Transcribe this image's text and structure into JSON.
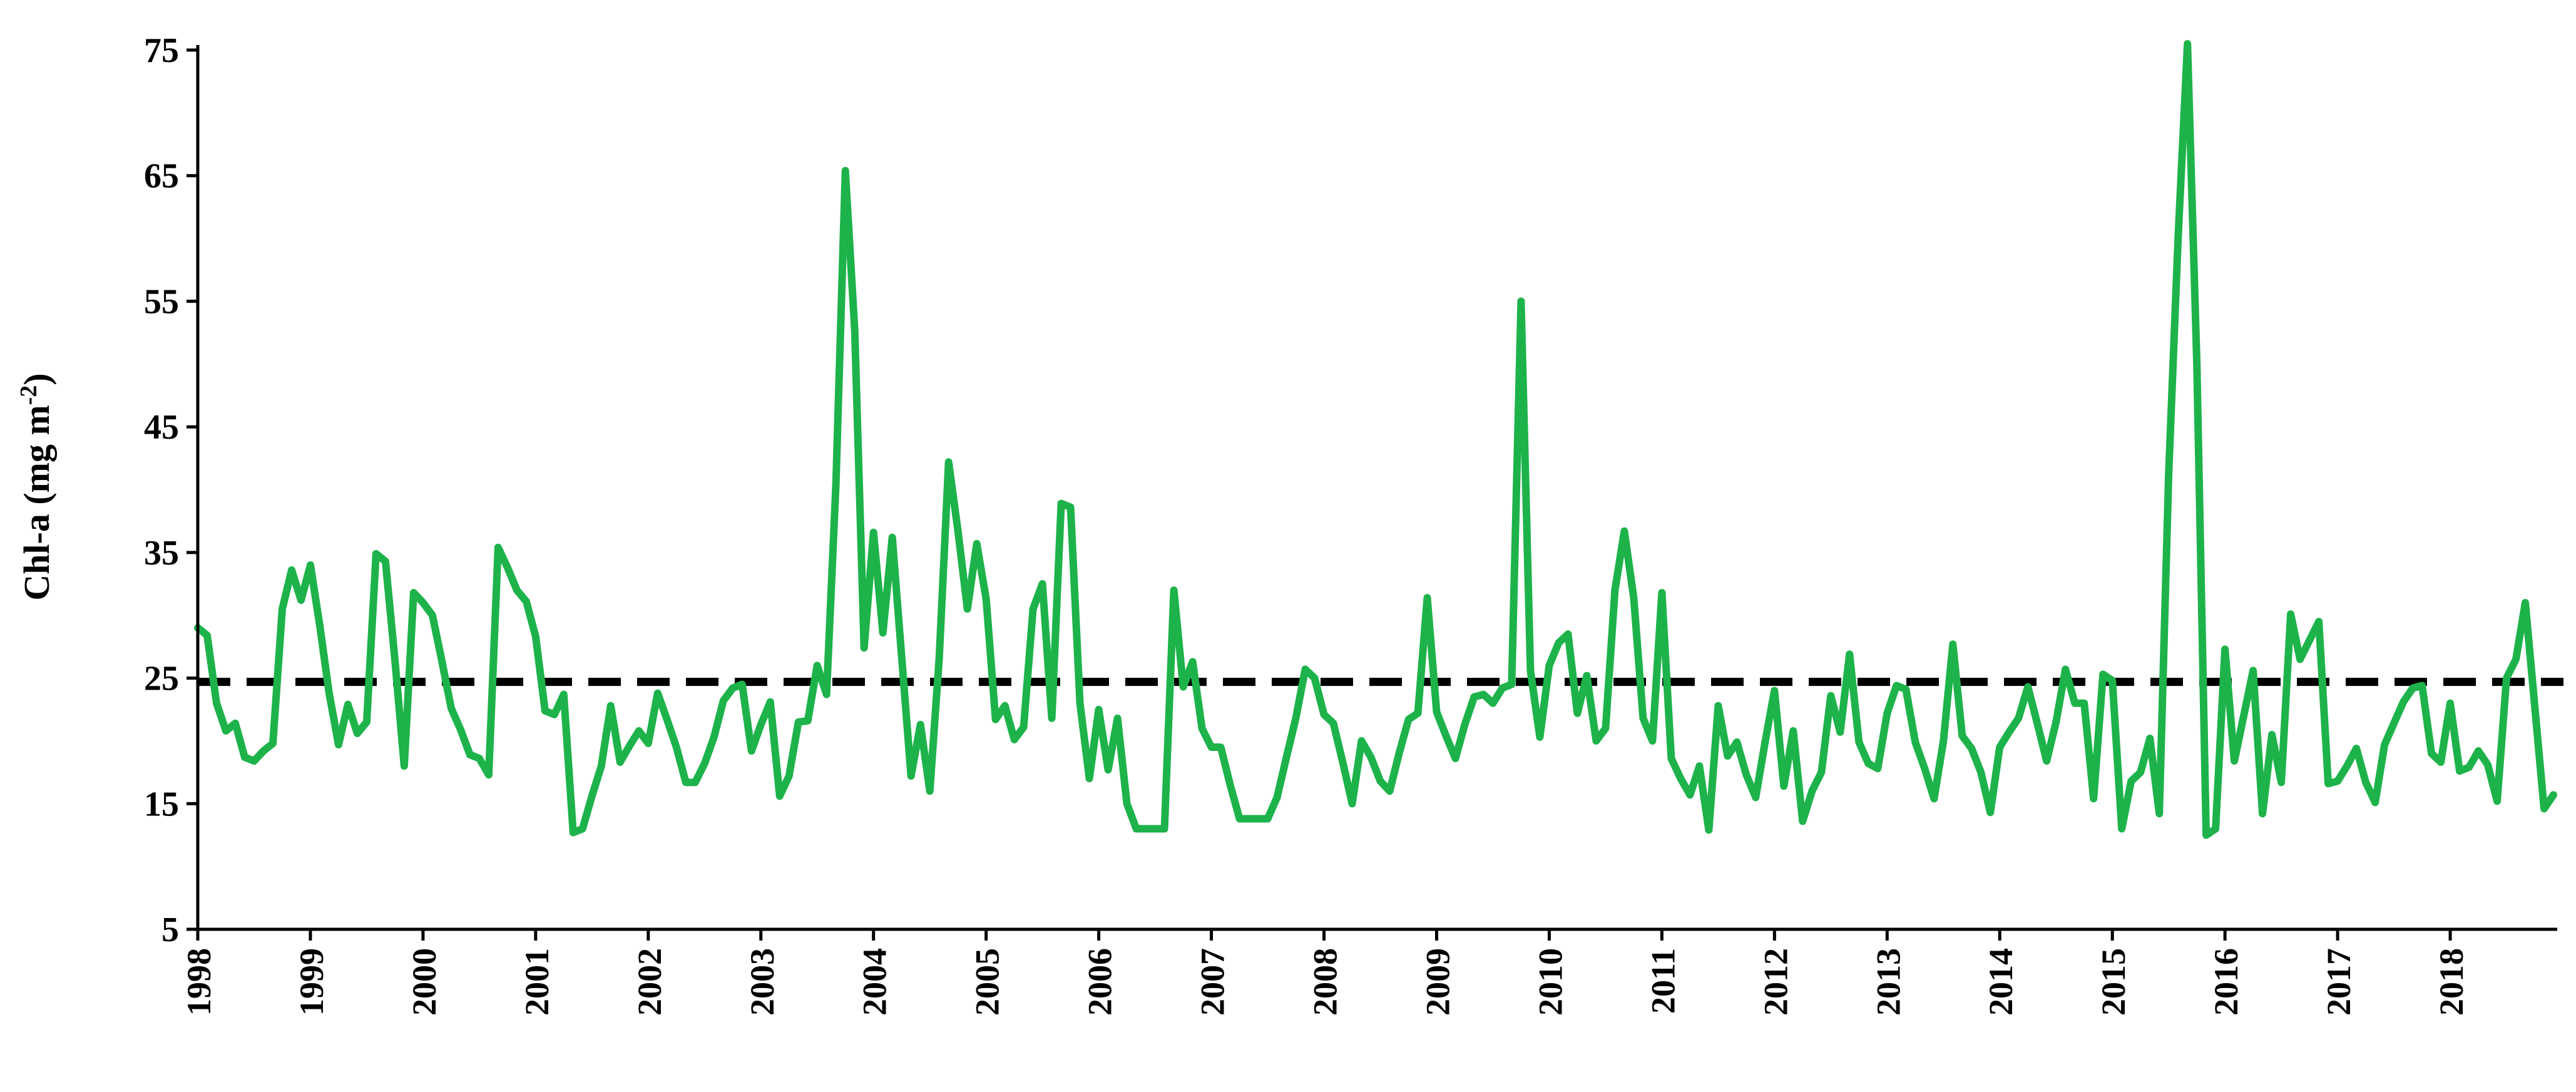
{
  "chart_data": {
    "type": "line",
    "title": "",
    "xlabel": "",
    "ylabel": "Chl-a (mg m",
    "ylabel_sup": "-2",
    "ylabel_close": ")",
    "ylim": [
      5,
      75
    ],
    "yticks": [
      5,
      15,
      25,
      35,
      45,
      55,
      65,
      75
    ],
    "xlim": [
      1998,
      2018.95
    ],
    "xticks": [
      "1998",
      "1999",
      "2000",
      "2001",
      "2002",
      "2003",
      "2004",
      "2005",
      "2006",
      "2007",
      "2008",
      "2009",
      "2010",
      "2011",
      "2012",
      "2013",
      "2014",
      "2015",
      "2016",
      "2017",
      "2018"
    ],
    "grid": false,
    "legend": "none",
    "colors": {
      "series": "#1db34a",
      "reference": "#000000",
      "axis": "#000000"
    },
    "series": [
      {
        "type": "line",
        "x_start": "1998-01",
        "x_step": "monthly",
        "values": [
          29.0,
          28.4,
          23.0,
          20.8,
          21.4,
          18.7,
          18.4,
          19.2,
          19.8,
          30.5,
          33.6,
          31.2,
          34.0,
          29.2,
          23.8,
          19.7,
          22.9,
          20.6,
          21.5,
          34.9,
          34.3,
          26.5,
          18.0,
          31.8,
          31.0,
          30.0,
          26.4,
          22.6,
          20.9,
          18.9,
          18.6,
          17.3,
          35.4,
          33.8,
          32.0,
          31.1,
          28.3,
          22.4,
          22.1,
          23.7,
          12.7,
          13.0,
          15.6,
          18.0,
          22.8,
          18.3,
          19.6,
          20.8,
          19.8,
          23.8,
          21.7,
          19.5,
          16.7,
          16.7,
          18.2,
          20.3,
          23.2,
          24.2,
          24.5,
          19.2,
          21.3,
          23.1,
          15.6,
          17.2,
          21.5,
          21.6,
          26.0,
          23.7,
          40.5,
          65.4,
          52.7,
          27.4,
          36.6,
          28.6,
          36.2,
          26.7,
          17.2,
          21.3,
          16.0,
          26.6,
          42.2,
          36.7,
          30.5,
          35.7,
          31.3,
          21.7,
          22.8,
          20.1,
          21.1,
          30.5,
          32.5,
          21.8,
          38.9,
          38.6,
          23.0,
          17.0,
          22.5,
          17.7,
          21.8,
          15.0,
          13.0,
          13.0,
          13.0,
          13.0,
          32.0,
          24.3,
          26.3,
          21.0,
          19.5,
          19.5,
          16.5,
          13.8,
          13.8,
          13.8,
          13.8,
          15.5,
          18.7,
          21.8,
          25.7,
          25.0,
          22.1,
          21.4,
          18.3,
          15.0,
          20.0,
          18.7,
          16.8,
          16.0,
          19.0,
          21.7,
          22.2,
          31.4,
          22.3,
          20.4,
          18.6,
          21.3,
          23.5,
          23.7,
          23.0,
          24.2,
          24.5,
          55.0,
          25.6,
          20.3,
          26.0,
          27.8,
          28.5,
          22.2,
          25.2,
          20.0,
          21.0,
          32.0,
          36.7,
          31.4,
          21.8,
          20.0,
          31.8,
          18.6,
          17.0,
          15.7,
          18.0,
          12.9,
          22.8,
          18.8,
          19.9,
          17.3,
          15.5,
          19.9,
          24.0,
          16.4,
          20.8,
          13.6,
          16.0,
          17.5,
          23.6,
          20.7,
          26.9,
          19.9,
          18.2,
          17.8,
          22.2,
          24.4,
          24.1,
          19.9,
          17.8,
          15.4,
          20.0,
          27.7,
          20.4,
          19.4,
          17.5,
          14.3,
          19.5,
          20.7,
          21.8,
          24.3,
          21.4,
          18.4,
          21.5,
          25.7,
          23.0,
          23.0,
          15.4,
          25.3,
          24.8,
          13.0,
          16.8,
          17.5,
          20.2,
          14.2,
          41.3,
          60.0,
          75.5,
          50.0,
          12.5,
          13.0,
          27.3,
          18.4,
          22.0,
          25.6,
          14.2,
          20.5,
          16.7,
          30.1,
          26.5,
          28.0,
          29.5,
          16.6,
          16.8,
          18.0,
          19.4,
          16.7,
          15.1,
          19.7,
          21.4,
          23.1,
          24.2,
          24.4,
          19.0,
          18.3,
          23.0,
          17.6,
          17.9,
          19.2,
          18.1,
          15.2,
          25.0,
          26.5,
          31.0,
          22.8,
          14.6,
          15.7
        ]
      },
      {
        "type": "reference-line",
        "style": "dashed",
        "value": 24.7
      }
    ]
  }
}
